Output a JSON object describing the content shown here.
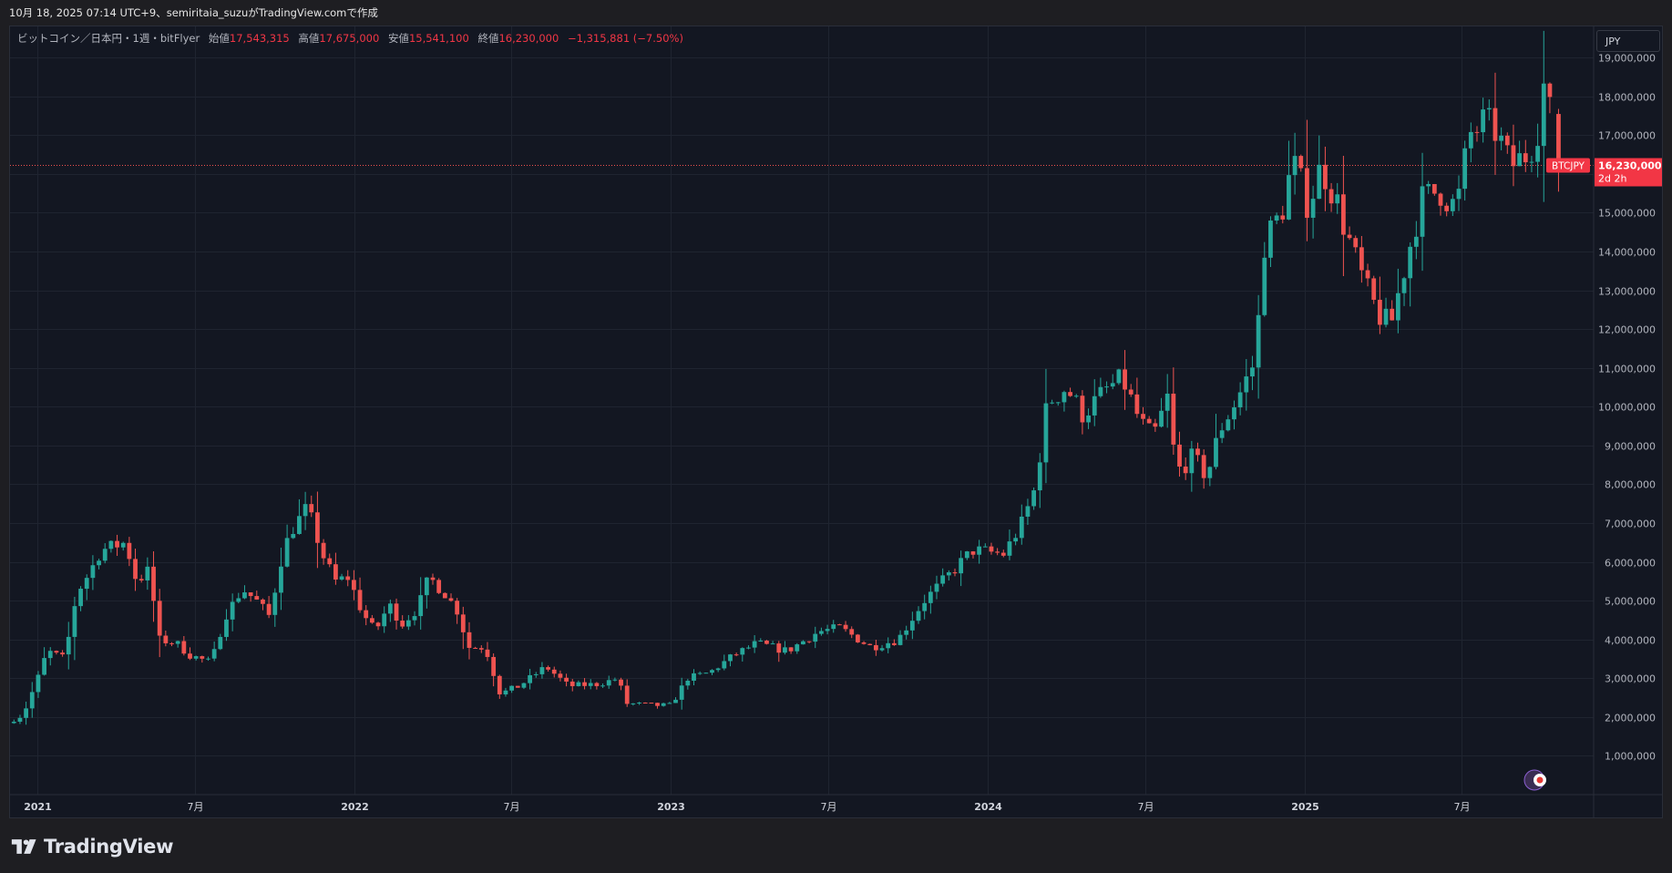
{
  "header": {
    "caption": "10月 18, 2025 07:14 UTC+9、semiritaia_suzuがTradingView.comで作成"
  },
  "legend": {
    "symbol": "ビットコイン／日本円・1週・bitFlyer",
    "open_label": "始値",
    "open_value": "17,543,315",
    "high_label": "高値",
    "high_value": "17,675,000",
    "low_label": "安値",
    "low_value": "15,541,100",
    "close_label": "終値",
    "close_value": "16,230,000",
    "change": "−1,315,881 (−7.50%)"
  },
  "currency_selector": {
    "label": "JPY"
  },
  "price_tag": {
    "symbol": "BTCJPY",
    "price": "16,230,000",
    "countdown": "2d 2h"
  },
  "brand": {
    "name": "TradingView"
  },
  "colors": {
    "up": "#26a69a",
    "down": "#ef5350",
    "background": "#131722",
    "grid": "#1f2430",
    "text": "#b2b5be",
    "current_price_line": "#ef5350"
  },
  "chart_data": {
    "type": "candlestick",
    "timeframe": "1週",
    "x_range": [
      "2020-11-30",
      "2025-11-30"
    ],
    "ylim": [
      0,
      19800000
    ],
    "y_ticks": [
      1000000,
      2000000,
      3000000,
      4000000,
      5000000,
      6000000,
      7000000,
      8000000,
      9000000,
      10000000,
      11000000,
      12000000,
      13000000,
      14000000,
      15000000,
      16000000,
      17000000,
      18000000,
      19000000
    ],
    "y_tick_labels": [
      "1,000,000",
      "2,000,000",
      "3,000,000",
      "4,000,000",
      "5,000,000",
      "6,000,000",
      "7,000,000",
      "8,000,000",
      "9,000,000",
      "10,000,000",
      "11,000,000",
      "12,000,000",
      "13,000,000",
      "14,000,000",
      "15,000,000",
      "16,000,000",
      "17,000,000",
      "18,000,000",
      "19,000,000"
    ],
    "x_ticks": [
      {
        "date": "2021-01-01",
        "label": "2021",
        "bold": true
      },
      {
        "date": "2021-07-01",
        "label": "7月",
        "bold": false
      },
      {
        "date": "2022-01-01",
        "label": "2022",
        "bold": true
      },
      {
        "date": "2022-07-01",
        "label": "7月",
        "bold": false
      },
      {
        "date": "2023-01-01",
        "label": "2023",
        "bold": true
      },
      {
        "date": "2023-07-01",
        "label": "7月",
        "bold": false
      },
      {
        "date": "2024-01-01",
        "label": "2024",
        "bold": true
      },
      {
        "date": "2024-07-01",
        "label": "7月",
        "bold": false
      },
      {
        "date": "2025-01-01",
        "label": "2025",
        "bold": true
      },
      {
        "date": "2025-07-01",
        "label": "7月",
        "bold": false
      }
    ],
    "current_price": 16230000,
    "close_trend": [
      [
        "2020-12-01",
        1900000
      ],
      [
        "2020-12-15",
        2050000
      ],
      [
        "2021-01-01",
        3000000
      ],
      [
        "2021-01-12",
        3700000
      ],
      [
        "2021-02-01",
        3500000
      ],
      [
        "2021-02-15",
        5200000
      ],
      [
        "2021-03-01",
        5700000
      ],
      [
        "2021-03-15",
        6300000
      ],
      [
        "2021-04-12",
        6500000
      ],
      [
        "2021-04-25",
        5500000
      ],
      [
        "2021-05-10",
        5800000
      ],
      [
        "2021-05-20",
        4000000
      ],
      [
        "2021-06-10",
        3900000
      ],
      [
        "2021-06-25",
        3600000
      ],
      [
        "2021-07-20",
        3400000
      ],
      [
        "2021-08-05",
        4600000
      ],
      [
        "2021-08-25",
        5300000
      ],
      [
        "2021-09-10",
        5000000
      ],
      [
        "2021-09-25",
        4600000
      ],
      [
        "2021-10-10",
        6200000
      ],
      [
        "2021-10-20",
        6800000
      ],
      [
        "2021-11-08",
        7400000
      ],
      [
        "2021-11-25",
        6200000
      ],
      [
        "2021-12-10",
        5500000
      ],
      [
        "2021-12-25",
        5600000
      ],
      [
        "2022-01-10",
        4700000
      ],
      [
        "2022-01-25",
        4200000
      ],
      [
        "2022-02-10",
        4900000
      ],
      [
        "2022-02-25",
        4400000
      ],
      [
        "2022-03-15",
        4800000
      ],
      [
        "2022-03-28",
        5600000
      ],
      [
        "2022-04-15",
        5200000
      ],
      [
        "2022-05-01",
        4700000
      ],
      [
        "2022-05-12",
        3800000
      ],
      [
        "2022-06-01",
        3800000
      ],
      [
        "2022-06-18",
        2600000
      ],
      [
        "2022-07-10",
        2800000
      ],
      [
        "2022-08-10",
        3300000
      ],
      [
        "2022-09-05",
        2800000
      ],
      [
        "2022-10-10",
        2850000
      ],
      [
        "2022-11-01",
        3000000
      ],
      [
        "2022-11-10",
        2350000
      ],
      [
        "2022-12-15",
        2300000
      ],
      [
        "2023-01-01",
        2300000
      ],
      [
        "2023-01-20",
        3000000
      ],
      [
        "2023-02-15",
        3150000
      ],
      [
        "2023-03-15",
        3600000
      ],
      [
        "2023-04-10",
        3900000
      ],
      [
        "2023-05-15",
        3700000
      ],
      [
        "2023-06-20",
        4200000
      ],
      [
        "2023-07-15",
        4300000
      ],
      [
        "2023-08-20",
        3800000
      ],
      [
        "2023-09-20",
        4000000
      ],
      [
        "2023-10-20",
        5000000
      ],
      [
        "2023-11-15",
        5600000
      ],
      [
        "2023-12-15",
        6300000
      ],
      [
        "2024-01-20",
        6200000
      ],
      [
        "2024-02-10",
        7000000
      ],
      [
        "2024-02-25",
        7900000
      ],
      [
        "2024-03-10",
        10100000
      ],
      [
        "2024-04-01",
        10500000
      ],
      [
        "2024-04-20",
        9800000
      ],
      [
        "2024-05-20",
        10500000
      ],
      [
        "2024-06-05",
        10700000
      ],
      [
        "2024-06-25",
        9600000
      ],
      [
        "2024-07-10",
        9200000
      ],
      [
        "2024-07-28",
        10300000
      ],
      [
        "2024-08-05",
        8300000
      ],
      [
        "2024-08-25",
        8700000
      ],
      [
        "2024-09-10",
        8200000
      ],
      [
        "2024-09-25",
        9400000
      ],
      [
        "2024-10-15",
        10200000
      ],
      [
        "2024-11-05",
        11200000
      ],
      [
        "2024-11-15",
        14200000
      ],
      [
        "2024-12-05",
        15000000
      ],
      [
        "2024-12-18",
        16300000
      ],
      [
        "2025-01-05",
        15200000
      ],
      [
        "2025-01-20",
        16200000
      ],
      [
        "2025-02-05",
        15400000
      ],
      [
        "2025-02-25",
        14000000
      ],
      [
        "2025-03-15",
        12900000
      ],
      [
        "2025-04-01",
        12200000
      ],
      [
        "2025-04-10",
        12100000
      ],
      [
        "2025-04-25",
        13500000
      ],
      [
        "2025-05-15",
        15300000
      ],
      [
        "2025-06-05",
        15600000
      ],
      [
        "2025-06-25",
        15100000
      ],
      [
        "2025-07-10",
        17000000
      ],
      [
        "2025-07-25",
        17300000
      ],
      [
        "2025-08-10",
        17100000
      ],
      [
        "2025-08-25",
        16200000
      ],
      [
        "2025-09-10",
        16400000
      ],
      [
        "2025-09-25",
        17000000
      ],
      [
        "2025-10-05",
        18500000
      ],
      [
        "2025-10-10",
        17543315
      ]
    ],
    "last_candle": {
      "open": 17543315,
      "high": 17675000,
      "low": 15541100,
      "close": 16230000
    }
  }
}
